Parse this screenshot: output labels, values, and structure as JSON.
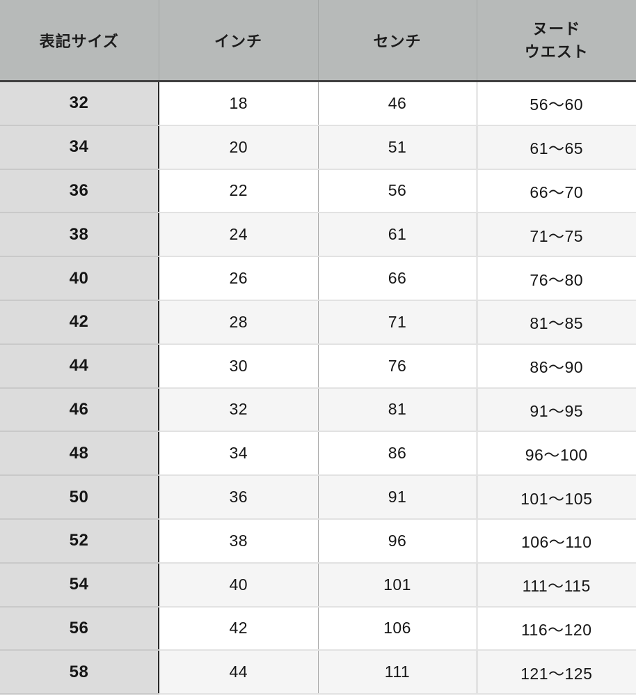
{
  "chart_data": {
    "type": "table",
    "title": "size-conversion-chart",
    "columns": [
      "表記サイズ",
      "インチ",
      "センチ",
      "ヌード\nウエスト"
    ],
    "rows": [
      [
        "32",
        "18",
        "46",
        "56〜60"
      ],
      [
        "34",
        "20",
        "51",
        "61〜65"
      ],
      [
        "36",
        "22",
        "56",
        "66〜70"
      ],
      [
        "38",
        "24",
        "61",
        "71〜75"
      ],
      [
        "40",
        "26",
        "66",
        "76〜80"
      ],
      [
        "42",
        "28",
        "71",
        "81〜85"
      ],
      [
        "44",
        "30",
        "76",
        "86〜90"
      ],
      [
        "46",
        "32",
        "81",
        "91〜95"
      ],
      [
        "48",
        "34",
        "86",
        "96〜100"
      ],
      [
        "50",
        "36",
        "91",
        "101〜105"
      ],
      [
        "52",
        "38",
        "96",
        "106〜110"
      ],
      [
        "54",
        "40",
        "101",
        "111〜115"
      ],
      [
        "56",
        "42",
        "106",
        "116〜120"
      ],
      [
        "58",
        "44",
        "111",
        "121〜125"
      ]
    ]
  },
  "colors": {
    "header_bg": "#b7bab9",
    "header_bottom_border": "#404040",
    "size_column_bg": "#dcdcdc",
    "size_column_divider": "#2a2a2a",
    "alt_row_bg": "#f5f5f5",
    "column_divider": "#a8a8a8",
    "row_divider": "#e2e2e2"
  }
}
